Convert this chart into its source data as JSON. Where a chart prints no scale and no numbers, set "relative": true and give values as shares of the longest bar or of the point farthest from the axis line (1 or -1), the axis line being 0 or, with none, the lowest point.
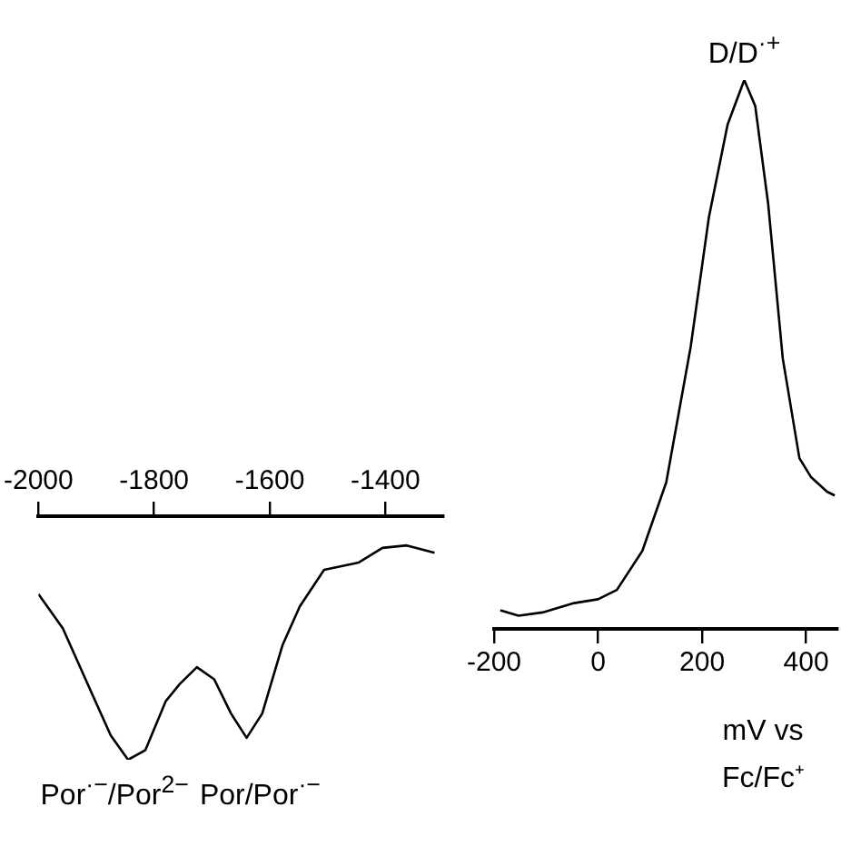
{
  "chart_data": [
    {
      "type": "line",
      "relative": true,
      "xlim": [
        -2000,
        -1300
      ],
      "xticks": [
        -2000,
        -1800,
        -1600,
        -1400
      ],
      "series": [
        {
          "color": "#000000",
          "x": [
            -2000,
            -1958,
            -1911,
            -1875,
            -1845,
            -1815,
            -1780,
            -1756,
            -1726,
            -1696,
            -1667,
            -1640,
            -1613,
            -1578,
            -1548,
            -1506,
            -1446,
            -1405,
            -1363,
            -1315
          ],
          "values": [
            -0.32,
            -0.46,
            -0.71,
            -0.9,
            -1.0,
            -0.96,
            -0.76,
            -0.69,
            -0.62,
            -0.67,
            -0.81,
            -0.91,
            -0.81,
            -0.53,
            -0.37,
            -0.22,
            -0.19,
            -0.13,
            -0.12,
            -0.15
          ]
        }
      ],
      "annotations": [
        {
          "text": "Por$^{·−}$/Por$^{2−}$",
          "x": -1845,
          "y": -1.0
        },
        {
          "text": "Por/Por$^{·−}$",
          "x": -1640,
          "y": -0.91
        }
      ],
      "grid": false,
      "legend": false
    },
    {
      "type": "line",
      "relative": true,
      "xlim": [
        -200,
        460
      ],
      "xticks": [
        -200,
        0,
        200,
        400
      ],
      "xlabel": "mV vs Fc/Fc⁺",
      "series": [
        {
          "color": "#000000",
          "x": [
            -188,
            -153,
            -107,
            -46,
            0,
            36,
            85,
            131,
            178,
            213,
            249,
            281,
            302,
            327,
            355,
            387,
            409,
            440,
            455
          ],
          "values": [
            0.034,
            0.024,
            0.03,
            0.047,
            0.054,
            0.071,
            0.142,
            0.267,
            0.514,
            0.75,
            0.919,
            1,
            0.953,
            0.774,
            0.493,
            0.311,
            0.277,
            0.25,
            0.243
          ]
        }
      ],
      "annotations": [
        {
          "text": "D/D$^{·+}$",
          "x": 281,
          "y": 1
        }
      ],
      "grid": false,
      "legend": false
    }
  ]
}
